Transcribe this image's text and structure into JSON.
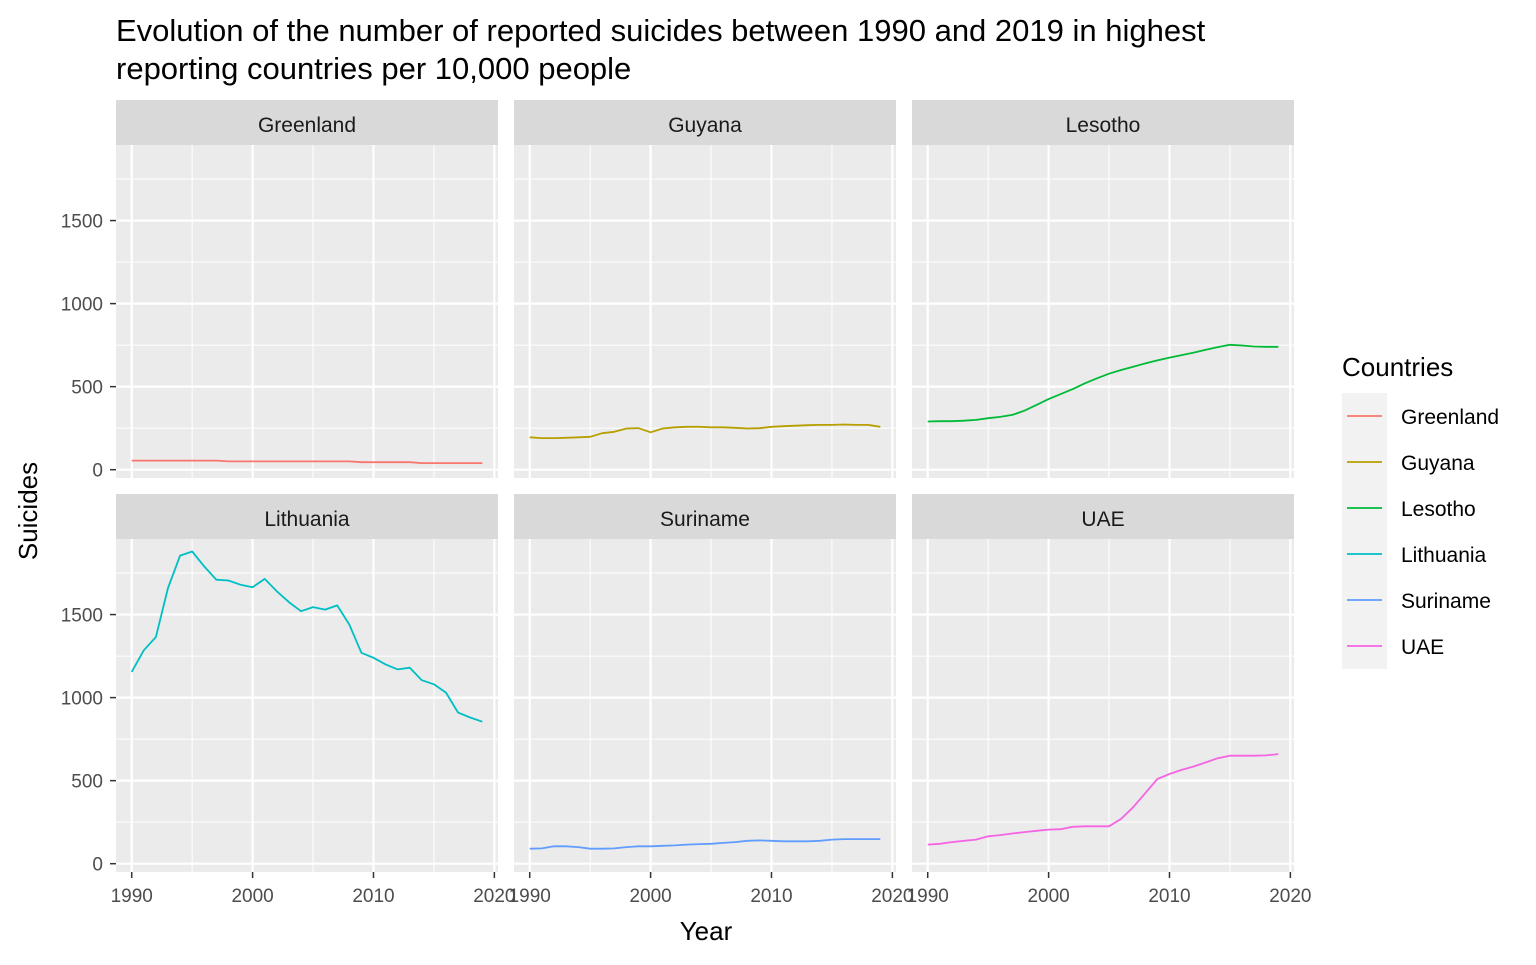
{
  "chart_data": {
    "type": "line",
    "title": "Evolution of the number of reported suicides between 1990 and 2019 in highest reporting countries per 10,000 people",
    "title_lines": [
      "Evolution of the number of reported suicides between 1990 and 2019 in highest",
      "reporting countries per 10,000 people"
    ],
    "xlabel": "Year",
    "ylabel": "Suicides",
    "xlim": [
      1988.7,
      2020.3
    ],
    "ylim": [
      -50,
      1955
    ],
    "x_ticks": [
      1990,
      2000,
      2010,
      2020
    ],
    "y_ticks": [
      0,
      500,
      1000,
      1500
    ],
    "grid": true,
    "facets": {
      "ncol": 3,
      "nrow": 2,
      "shared_axes": true
    },
    "legend": {
      "title": "Countries",
      "position": "right"
    },
    "x": [
      1990,
      1991,
      1992,
      1993,
      1994,
      1995,
      1996,
      1997,
      1998,
      1999,
      2000,
      2001,
      2002,
      2003,
      2004,
      2005,
      2006,
      2007,
      2008,
      2009,
      2010,
      2011,
      2012,
      2013,
      2014,
      2015,
      2016,
      2017,
      2018,
      2019
    ],
    "series": [
      {
        "name": "Greenland",
        "color": "#F8766D",
        "values": [
          55,
          55,
          55,
          55,
          55,
          55,
          55,
          55,
          50,
          50,
          50,
          50,
          50,
          50,
          50,
          50,
          50,
          50,
          50,
          45,
          45,
          45,
          45,
          45,
          40,
          40,
          40,
          40,
          40,
          40
        ]
      },
      {
        "name": "Guyana",
        "color": "#B79F00",
        "values": [
          195,
          190,
          190,
          192,
          195,
          198,
          220,
          228,
          248,
          250,
          225,
          248,
          255,
          258,
          258,
          255,
          255,
          252,
          248,
          250,
          258,
          262,
          265,
          268,
          270,
          270,
          272,
          270,
          270,
          258
        ]
      },
      {
        "name": "Lesotho",
        "color": "#00BA38",
        "values": [
          290,
          292,
          292,
          295,
          300,
          310,
          318,
          330,
          355,
          390,
          425,
          455,
          485,
          520,
          550,
          578,
          600,
          620,
          640,
          658,
          675,
          690,
          705,
          722,
          738,
          752,
          748,
          742,
          740,
          740
        ]
      },
      {
        "name": "Lithuania",
        "color": "#00BFC4",
        "values": [
          1155,
          1285,
          1365,
          1660,
          1855,
          1880,
          1790,
          1710,
          1705,
          1680,
          1665,
          1715,
          1640,
          1575,
          1520,
          1545,
          1530,
          1555,
          1440,
          1270,
          1240,
          1200,
          1170,
          1180,
          1105,
          1080,
          1030,
          910,
          880,
          855
        ]
      },
      {
        "name": "Suriname",
        "color": "#619CFF",
        "values": [
          90,
          92,
          105,
          105,
          100,
          90,
          90,
          92,
          100,
          105,
          105,
          108,
          110,
          115,
          118,
          120,
          125,
          130,
          138,
          140,
          138,
          135,
          135,
          135,
          138,
          145,
          148,
          148,
          148,
          148
        ]
      },
      {
        "name": "UAE",
        "color": "#F564E3",
        "values": [
          115,
          120,
          130,
          138,
          145,
          165,
          172,
          182,
          190,
          198,
          205,
          208,
          222,
          225,
          225,
          225,
          270,
          340,
          425,
          510,
          540,
          565,
          585,
          610,
          635,
          650,
          650,
          650,
          652,
          660
        ]
      }
    ]
  }
}
